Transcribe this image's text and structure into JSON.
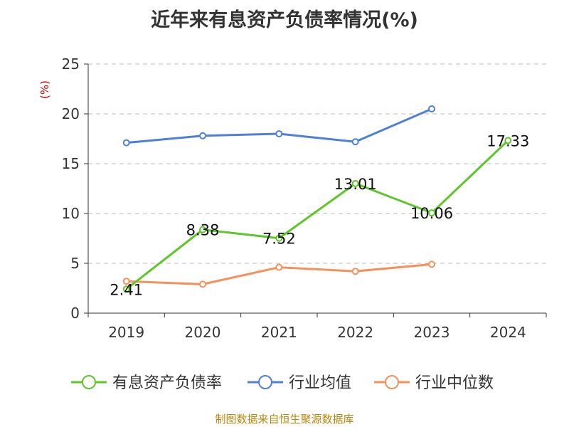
{
  "title": "近年来有息资产负债率情况(%)",
  "source": "制图数据来自恒生聚源数据库",
  "colors": {
    "debt_ratio": "#5ec52b",
    "industry_avg": "#4f80d9",
    "industry_median": "#f5905a",
    "axis": "#333333",
    "grid": "#bbbbbb",
    "ylabel": "#cc0000"
  },
  "chart_data": {
    "type": "line",
    "ylabel": "(%)",
    "ylim": [
      0,
      25
    ],
    "yticks": [
      0,
      5,
      10,
      15,
      20,
      25
    ],
    "grid": "horizontal-dashed",
    "legend_position": "bottom",
    "categories": [
      "2019",
      "2020",
      "2021",
      "2022",
      "2023",
      "2024"
    ],
    "series": [
      {
        "name": "有息资产负债率",
        "key": "debt_ratio",
        "values": [
          2.41,
          8.38,
          7.52,
          13.01,
          10.06,
          17.33
        ],
        "labels": [
          "2.41",
          "8.38",
          "7.52",
          "13.01",
          "10.06",
          "17.33"
        ]
      },
      {
        "name": "行业均值",
        "key": "industry_avg",
        "values": [
          17.1,
          17.8,
          18.0,
          17.2,
          20.5,
          null
        ],
        "labels": null
      },
      {
        "name": "行业中位数",
        "key": "industry_median",
        "values": [
          3.2,
          2.9,
          4.6,
          4.2,
          4.9,
          null
        ],
        "labels": null
      }
    ]
  }
}
